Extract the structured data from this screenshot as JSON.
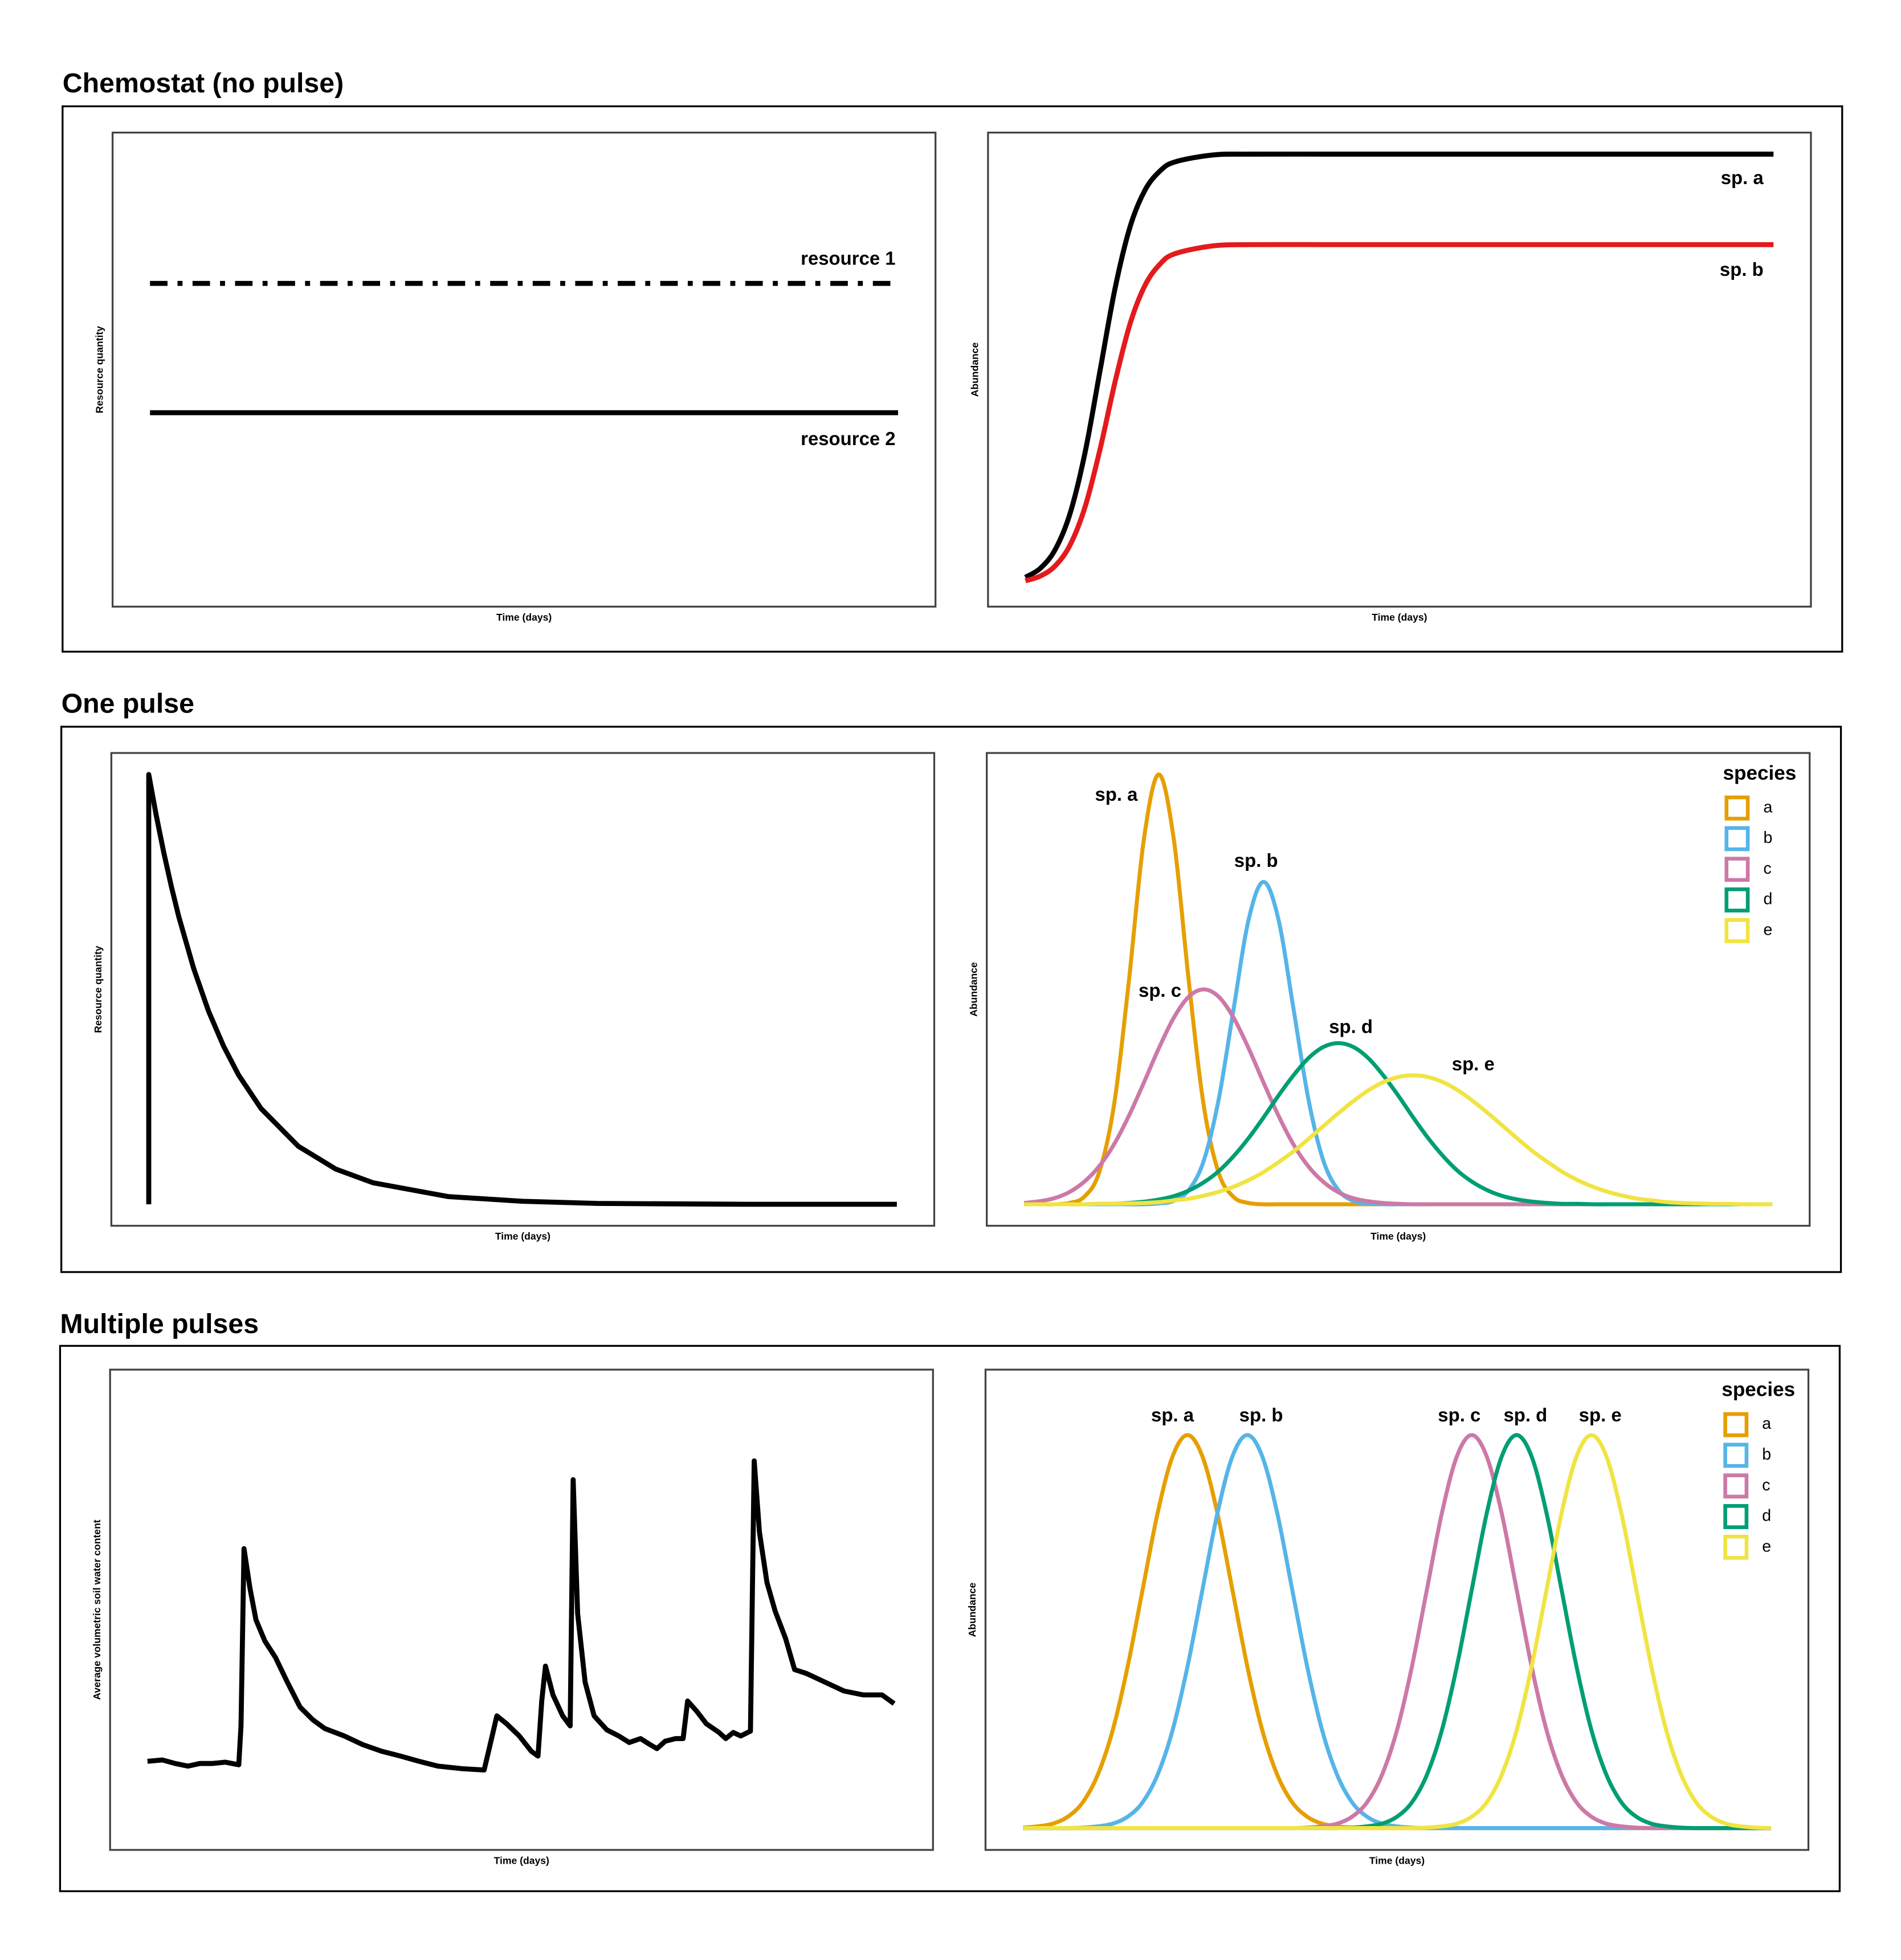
{
  "sections": [
    "Chemostat (no pulse)",
    "One pulse",
    "Multiple pulses"
  ],
  "chart_data": [
    {
      "type": "line",
      "xlabel": "Time (days)",
      "ylabel": "Resource quantity",
      "xlim": [
        -5,
        105
      ],
      "ylim": [
        -5,
        105
      ],
      "x": [
        0,
        100
      ],
      "series": [
        {
          "name": "resource 1",
          "color": "#000000",
          "dash": "dash-dot",
          "values": [
            70,
            70
          ]
        },
        {
          "name": "resource 2",
          "color": "#000000",
          "values": [
            40,
            40
          ]
        }
      ]
    },
    {
      "type": "line",
      "xlabel": "Time (days)",
      "ylabel": "Abundance",
      "xlim": [
        -5,
        105
      ],
      "ylim": [
        -5,
        105
      ],
      "smooth": true,
      "x": [
        0,
        2,
        4,
        6,
        8,
        10,
        12,
        14,
        16,
        18,
        20,
        25,
        30,
        40,
        50,
        60,
        70,
        80,
        90,
        100
      ],
      "series": [
        {
          "name": "sp. a",
          "color": "#000000",
          "values": [
            1.8,
            3.9,
            8.3,
            16.8,
            31.0,
            50,
            69.0,
            83.2,
            91.7,
            96.1,
            98.2,
            99.8,
            100,
            100,
            100,
            100,
            100,
            100,
            100,
            100
          ]
        },
        {
          "name": "sp. b",
          "color": "#e41a1c",
          "values": [
            1.0,
            2.1,
            4.5,
            9.4,
            18.3,
            31.7,
            47.3,
            60.7,
            69.6,
            74.5,
            76.9,
            78.7,
            79,
            79,
            79,
            79,
            79,
            79,
            79,
            79
          ]
        }
      ]
    },
    {
      "type": "line",
      "xlabel": "Time (days)",
      "ylabel": "Resource quantity",
      "xlim": [
        -5,
        105
      ],
      "ylim": [
        -5,
        105
      ],
      "x": [
        0,
        0,
        1,
        2,
        3,
        4,
        6,
        8,
        10,
        12,
        15,
        20,
        25,
        30,
        40,
        50,
        60,
        80,
        100
      ],
      "series": [
        {
          "color": "#000000",
          "values": [
            0,
            100,
            90.5,
            81.9,
            74.1,
            67.0,
            54.9,
            44.9,
            36.8,
            30.1,
            22.3,
            13.5,
            8.2,
            5.0,
            1.8,
            0.7,
            0.2,
            0,
            0
          ]
        }
      ]
    },
    {
      "type": "line",
      "xlabel": "Time (days)",
      "ylabel": "Abundance",
      "xlim": [
        -5,
        105
      ],
      "ylim": [
        -5,
        105
      ],
      "smooth": true,
      "legend": {
        "title": "species",
        "position": "top-right"
      },
      "x": [
        0,
        2,
        4,
        6,
        8,
        10,
        12,
        14,
        16,
        18,
        20,
        22,
        24,
        26,
        28,
        30,
        32,
        34,
        36,
        38,
        40,
        42,
        44,
        46,
        48,
        50,
        52,
        54,
        56,
        58,
        60,
        62,
        64,
        66,
        68,
        70,
        72,
        74,
        76,
        78,
        80,
        82,
        84,
        86,
        88,
        90,
        92,
        94,
        96,
        98,
        100
      ],
      "series": [
        {
          "name": "a",
          "label": "sp. a",
          "color": "#e69f00",
          "values": [
            0,
            0,
            0,
            0.3,
            1.7,
            7.3,
            23.0,
            52.0,
            84.9,
            100,
            84.9,
            52.0,
            23.0,
            7.3,
            1.7,
            0.3,
            0,
            0,
            0,
            0,
            0,
            0,
            0,
            0,
            0,
            0,
            0,
            0,
            0,
            0,
            0,
            0,
            0,
            0,
            0,
            0,
            0,
            0,
            0,
            0,
            0,
            0,
            0,
            0,
            0,
            0,
            0,
            0,
            0,
            0,
            0
          ]
        },
        {
          "name": "b",
          "label": "sp. b",
          "color": "#56b4e9",
          "values": [
            0,
            0,
            0,
            0,
            0,
            0,
            0,
            0,
            0,
            0.2,
            0.8,
            3.3,
            10.1,
            24.4,
            45.5,
            66.2,
            75,
            66.2,
            45.5,
            24.4,
            10.1,
            3.3,
            0.8,
            0.2,
            0,
            0,
            0,
            0,
            0,
            0,
            0,
            0,
            0,
            0,
            0,
            0,
            0,
            0,
            0,
            0,
            0,
            0,
            0,
            0,
            0,
            0,
            0,
            0,
            0,
            0,
            0
          ]
        },
        {
          "name": "c",
          "label": "sp. c",
          "color": "#cc79a7",
          "values": [
            0.3,
            0.7,
            1.4,
            2.8,
            5.2,
            8.8,
            13.9,
            20.6,
            28.3,
            36.3,
            43.4,
            48.3,
            50,
            48.3,
            43.4,
            36.3,
            28.3,
            20.6,
            13.9,
            8.8,
            5.2,
            2.8,
            1.4,
            0.7,
            0.3,
            0.1,
            0,
            0,
            0,
            0,
            0,
            0,
            0,
            0,
            0,
            0,
            0,
            0,
            0,
            0,
            0,
            0,
            0,
            0,
            0,
            0,
            0,
            0,
            0,
            0,
            0
          ]
        },
        {
          "name": "d",
          "label": "sp. d",
          "color": "#009e73",
          "values": [
            0,
            0,
            0,
            0,
            0,
            0.1,
            0.1,
            0.3,
            0.6,
            1.1,
            1.9,
            3.2,
            5.1,
            7.7,
            11.2,
            15.4,
            20.2,
            25.3,
            30.0,
            34.0,
            36.6,
            37.5,
            36.6,
            34.0,
            30.0,
            25.3,
            20.2,
            15.4,
            11.2,
            7.7,
            5.1,
            3.2,
            1.9,
            1.1,
            0.6,
            0.3,
            0.1,
            0.1,
            0,
            0,
            0,
            0,
            0,
            0,
            0,
            0,
            0,
            0,
            0,
            0,
            0
          ]
        },
        {
          "name": "e",
          "label": "sp. e",
          "color": "#f0e442",
          "values": [
            0,
            0,
            0,
            0,
            0,
            0.1,
            0.1,
            0.2,
            0.3,
            0.5,
            0.9,
            1.3,
            2.0,
            2.9,
            4.1,
            5.6,
            7.5,
            9.8,
            12.3,
            15.2,
            18.2,
            21.2,
            24.0,
            26.5,
            28.4,
            29.6,
            30,
            29.6,
            28.4,
            26.5,
            24.0,
            21.2,
            18.2,
            15.2,
            12.3,
            9.8,
            7.5,
            5.6,
            4.1,
            2.9,
            2.0,
            1.3,
            0.9,
            0.5,
            0.3,
            0.2,
            0.1,
            0.1,
            0,
            0,
            0
          ]
        }
      ]
    },
    {
      "type": "line",
      "xlabel": "Time (days)",
      "ylabel": "Average volumetric soil water content",
      "xlim": [
        -5,
        105
      ],
      "ylim": [
        -5,
        105
      ],
      "x": [
        0,
        2.0,
        3.7,
        5.4,
        7.0,
        8.7,
        10.4,
        12.2,
        12.5,
        12.9,
        13.7,
        14.5,
        15.7,
        17.1,
        18.7,
        20.4,
        22.1,
        23.7,
        26.3,
        28.8,
        31.3,
        33.8,
        36.3,
        38.8,
        42.1,
        45.0,
        45.8,
        46.7,
        48.0,
        49.7,
        51.3,
        52.2,
        52.7,
        53.2,
        54.2,
        55.5,
        56.5,
        56.9,
        57.5,
        58.5,
        59.7,
        61.4,
        63.0,
        64.4,
        65.9,
        67.2,
        68.1,
        69.2,
        70.6,
        71.6,
        72.2,
        73.4,
        74.7,
        76.4,
        77.3,
        78.3,
        79.3,
        80.6,
        81.1,
        81.8,
        82.8,
        83.9,
        85.3,
        86.5,
        88.1,
        90.6,
        93.1,
        95.7,
        98.2,
        99.8
      ],
      "series": [
        {
          "color": "#000000",
          "values": [
            15.3,
            15.6,
            14.8,
            14.2,
            14.8,
            14.8,
            15.1,
            14.5,
            23.4,
            64.0,
            54.9,
            47.7,
            42.8,
            39.1,
            33.4,
            27.7,
            24.8,
            22.8,
            21.1,
            19.1,
            17.6,
            16.5,
            15.3,
            14.2,
            13.6,
            13.3,
            19.1,
            25.7,
            23.9,
            21.1,
            17.6,
            16.5,
            29.1,
            37.1,
            30.5,
            25.7,
            23.4,
            79.8,
            49.1,
            33.4,
            25.7,
            22.5,
            21.1,
            19.6,
            20.5,
            19.1,
            18.2,
            19.9,
            20.5,
            20.5,
            29.1,
            26.8,
            23.9,
            21.9,
            20.5,
            21.9,
            21.1,
            22.2,
            84.1,
            67.8,
            56.3,
            49.7,
            43.4,
            36.3,
            35.4,
            33.4,
            31.4,
            30.5,
            30.5,
            28.5
          ]
        }
      ]
    },
    {
      "type": "line",
      "xlabel": "Time (days)",
      "ylabel": "Abundance",
      "xlim": [
        -5,
        105
      ],
      "ylim": [
        -5,
        105
      ],
      "smooth": true,
      "legend": {
        "title": "species",
        "position": "top-right"
      },
      "x": [
        0,
        2,
        4,
        6,
        8,
        10,
        12,
        14,
        16,
        18,
        20,
        22,
        24,
        26,
        28,
        30,
        32,
        34,
        36,
        38,
        40,
        42,
        44,
        46,
        48,
        50,
        52,
        54,
        56,
        58,
        60,
        62,
        64,
        66,
        68,
        70,
        72,
        74,
        76,
        78,
        80,
        82,
        84,
        86,
        88,
        90,
        92,
        94,
        96,
        98,
        100
      ],
      "series": [
        {
          "name": "a",
          "label": "sp. a",
          "color": "#e69f00",
          "values": [
            0.1,
            0.4,
            1.0,
            2.6,
            5.9,
            12.2,
            22.4,
            37.0,
            54.6,
            72.1,
            85.1,
            90,
            85.1,
            72.1,
            54.6,
            37.0,
            22.4,
            12.2,
            5.9,
            2.6,
            1.0,
            0.4,
            0.1,
            0,
            0,
            0,
            0,
            0,
            0,
            0,
            0,
            0,
            0,
            0,
            0,
            0,
            0,
            0,
            0,
            0,
            0,
            0,
            0,
            0,
            0,
            0,
            0,
            0,
            0,
            0,
            0
          ]
        },
        {
          "name": "b",
          "label": "sp. b",
          "color": "#56b4e9",
          "values": [
            0,
            0,
            0,
            0,
            0.1,
            0.4,
            1.0,
            2.6,
            5.9,
            12.2,
            22.4,
            37.0,
            54.6,
            72.1,
            85.1,
            90,
            85.1,
            72.1,
            54.6,
            37.0,
            22.4,
            12.2,
            5.9,
            2.6,
            1.0,
            0.4,
            0.1,
            0,
            0,
            0,
            0,
            0,
            0,
            0,
            0,
            0,
            0,
            0,
            0,
            0,
            0,
            0,
            0,
            0,
            0,
            0,
            0,
            0,
            0,
            0,
            0
          ]
        },
        {
          "name": "c",
          "label": "sp. c",
          "color": "#cc79a7",
          "values": [
            0,
            0,
            0,
            0,
            0,
            0,
            0,
            0,
            0,
            0,
            0,
            0,
            0,
            0,
            0,
            0,
            0,
            0,
            0,
            0.1,
            0.4,
            1.0,
            2.6,
            5.9,
            12.2,
            22.4,
            37.0,
            54.6,
            72.1,
            85.1,
            90,
            85.1,
            72.1,
            54.6,
            37.0,
            22.4,
            12.2,
            5.9,
            2.6,
            1.0,
            0.4,
            0.1,
            0,
            0,
            0,
            0,
            0,
            0,
            0,
            0,
            0
          ]
        },
        {
          "name": "d",
          "label": "sp. d",
          "color": "#009e73",
          "values": [
            0,
            0,
            0,
            0,
            0,
            0,
            0,
            0,
            0,
            0,
            0,
            0,
            0,
            0,
            0,
            0,
            0,
            0,
            0,
            0,
            0,
            0,
            0.1,
            0.4,
            1.0,
            2.6,
            5.9,
            12.2,
            22.4,
            37.0,
            54.6,
            72.1,
            85.1,
            90,
            85.1,
            72.1,
            54.6,
            37.0,
            22.4,
            12.2,
            5.9,
            2.6,
            1.0,
            0.4,
            0.1,
            0,
            0,
            0,
            0,
            0,
            0
          ]
        },
        {
          "name": "e",
          "label": "sp. e",
          "color": "#f0e442",
          "values": [
            0,
            0,
            0,
            0,
            0,
            0,
            0,
            0,
            0,
            0,
            0,
            0,
            0,
            0,
            0,
            0,
            0,
            0,
            0,
            0,
            0,
            0,
            0,
            0,
            0,
            0,
            0,
            0.1,
            0.4,
            1.0,
            2.6,
            5.9,
            12.2,
            22.4,
            37.0,
            54.6,
            72.1,
            85.1,
            90,
            85.1,
            72.1,
            54.6,
            37.0,
            22.4,
            12.2,
            5.9,
            2.6,
            1.0,
            0.4,
            0.1,
            0
          ]
        }
      ]
    }
  ]
}
